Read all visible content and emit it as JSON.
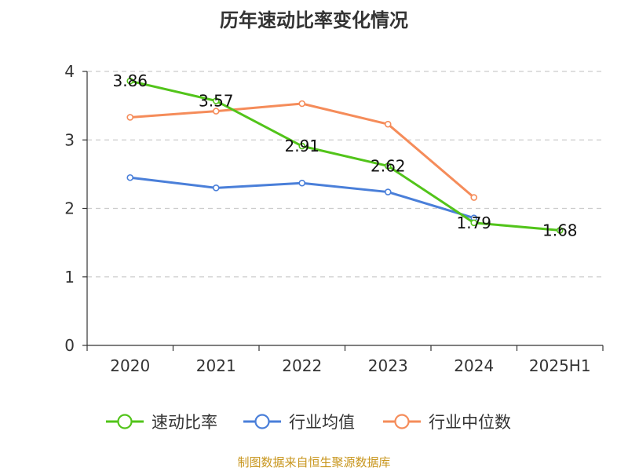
{
  "chart_data": {
    "type": "line",
    "title": "历年速动比率变化情况",
    "categories": [
      "2020",
      "2021",
      "2022",
      "2023",
      "2024",
      "2025H1"
    ],
    "yticks": [
      "0",
      "1",
      "2",
      "3",
      "4"
    ],
    "ylim": [
      0,
      4
    ],
    "grid": true,
    "legend_position": "bottom",
    "series": [
      {
        "name": "速动比率",
        "color": "#52c41a",
        "values": [
          3.86,
          3.57,
          2.91,
          2.62,
          1.79,
          1.68
        ],
        "labels": [
          "3.86",
          "3.57",
          "2.91",
          "2.62",
          "1.79",
          "1.68"
        ]
      },
      {
        "name": "行业均值",
        "color": "#4a7fd9",
        "values": [
          2.45,
          2.3,
          2.37,
          2.24,
          1.86,
          null
        ]
      },
      {
        "name": "行业中位数",
        "color": "#f58c5a",
        "values": [
          3.33,
          3.42,
          3.53,
          3.23,
          2.16,
          null
        ]
      }
    ],
    "source": "制图数据来自恒生聚源数据库"
  }
}
